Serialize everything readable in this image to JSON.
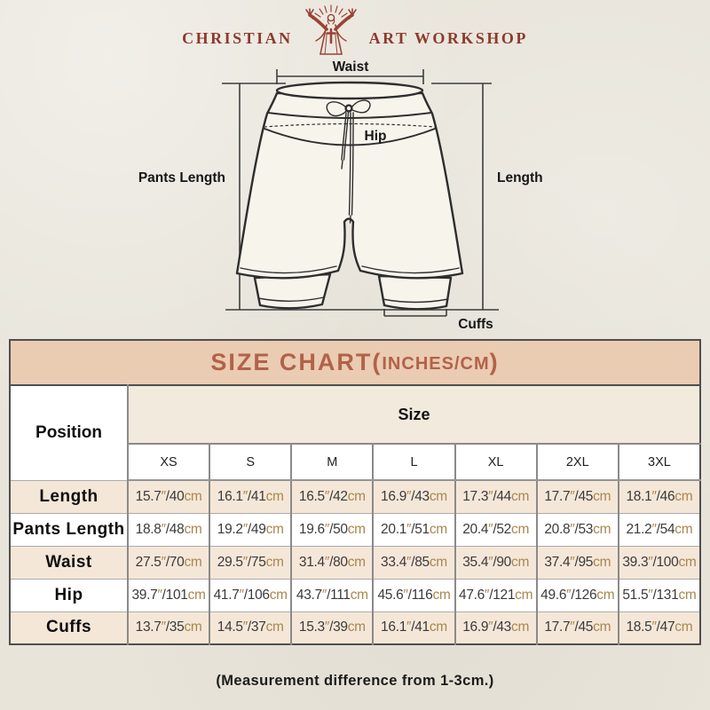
{
  "logo": {
    "left": "CHRISTIAN",
    "right": "ART WORKSHOP",
    "figure_icon": "jesus-figure-icon",
    "brand_color": "#8d3a2c"
  },
  "diagram": {
    "labels": {
      "waist": "Waist",
      "hip": "Hip",
      "pants_length": "Pants Length",
      "length": "Length",
      "cuffs": "Cuffs"
    }
  },
  "size_chart": {
    "title_main": "SIZE CHART(",
    "title_sub": "INCHES/CM",
    "title_close": ")",
    "position_header": "Position",
    "size_header": "Size",
    "sizes": [
      "XS",
      "S",
      "M",
      "L",
      "XL",
      "2XL",
      "3XL"
    ],
    "units": {
      "inch_mark": "″",
      "separator": "/",
      "cm": "cm"
    },
    "rows": [
      {
        "label": "Length",
        "values": [
          {
            "in": "15.7",
            "cm": "40"
          },
          {
            "in": "16.1",
            "cm": "41"
          },
          {
            "in": "16.5",
            "cm": "42"
          },
          {
            "in": "16.9",
            "cm": "43"
          },
          {
            "in": "17.3",
            "cm": "44"
          },
          {
            "in": "17.7",
            "cm": "45"
          },
          {
            "in": "18.1",
            "cm": "46"
          }
        ]
      },
      {
        "label": "Pants Length",
        "values": [
          {
            "in": "18.8",
            "cm": "48"
          },
          {
            "in": "19.2",
            "cm": "49"
          },
          {
            "in": "19.6",
            "cm": "50"
          },
          {
            "in": "20.1",
            "cm": "51"
          },
          {
            "in": "20.4",
            "cm": "52"
          },
          {
            "in": "20.8",
            "cm": "53"
          },
          {
            "in": "21.2",
            "cm": "54"
          }
        ]
      },
      {
        "label": "Waist",
        "values": [
          {
            "in": "27.5",
            "cm": "70"
          },
          {
            "in": "29.5",
            "cm": "75"
          },
          {
            "in": "31.4",
            "cm": "80"
          },
          {
            "in": "33.4",
            "cm": "85"
          },
          {
            "in": "35.4",
            "cm": "90"
          },
          {
            "in": "37.4",
            "cm": "95"
          },
          {
            "in": "39.3",
            "cm": "100"
          }
        ]
      },
      {
        "label": "Hip",
        "values": [
          {
            "in": "39.7",
            "cm": "101"
          },
          {
            "in": "41.7",
            "cm": "106"
          },
          {
            "in": "43.7",
            "cm": "111"
          },
          {
            "in": "45.6",
            "cm": "116"
          },
          {
            "in": "47.6",
            "cm": "121"
          },
          {
            "in": "49.6",
            "cm": "126"
          },
          {
            "in": "51.5",
            "cm": "131"
          }
        ]
      },
      {
        "label": "Cuffs",
        "values": [
          {
            "in": "13.7",
            "cm": "35"
          },
          {
            "in": "14.5",
            "cm": "37"
          },
          {
            "in": "15.3",
            "cm": "39"
          },
          {
            "in": "16.1",
            "cm": "41"
          },
          {
            "in": "16.9",
            "cm": "43"
          },
          {
            "in": "17.7",
            "cm": "45"
          },
          {
            "in": "18.5",
            "cm": "47"
          }
        ]
      }
    ],
    "colors": {
      "banner_bg": "#eaccb2",
      "title_text": "#b2624a",
      "size_header_bg": "#f1eadd",
      "beige_row_bg": "#f5e7d8",
      "unit_text": "#a8874f",
      "border_gray": "#8a8a8a"
    }
  },
  "footer": {
    "note": "(Measurement difference from 1-3cm.)"
  }
}
